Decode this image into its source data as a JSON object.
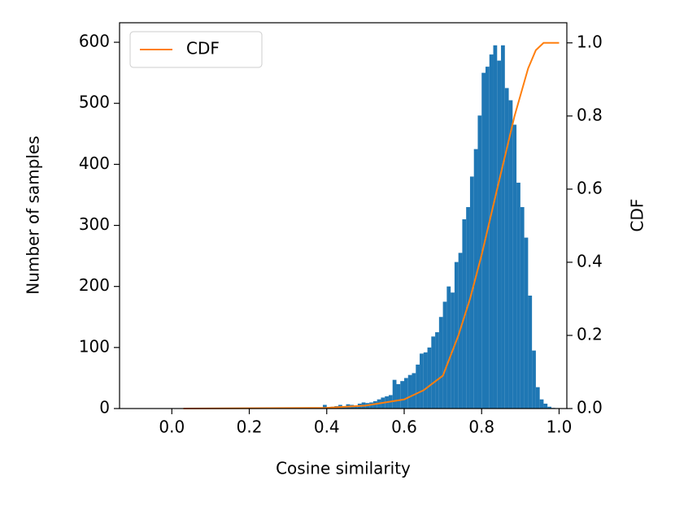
{
  "chart_data": {
    "type": "histogram",
    "x_label": "Cosine similarity",
    "y_label": "Number of samples",
    "y2_label": "CDF",
    "color": "#1f77b4",
    "bins": [
      0,
      0.01,
      0.02,
      0.03,
      0.04,
      0.05,
      0.06,
      0.07,
      0.08,
      0.09,
      0.1,
      0.11,
      0.12,
      0.13,
      0.14,
      0.15,
      0.16,
      0.17,
      0.18,
      0.19,
      0.2,
      0.21,
      0.22,
      0.23,
      0.24,
      0.25,
      0.26,
      0.27,
      0.28,
      0.29,
      0.3,
      0.31,
      0.32,
      0.33,
      0.34,
      0.35,
      0.36,
      0.37,
      0.38,
      0.39,
      0.4,
      0.41,
      0.42,
      0.43,
      0.44,
      0.45,
      0.46,
      0.47,
      0.48,
      0.49,
      0.5,
      0.51,
      0.52,
      0.53,
      0.54,
      0.55,
      0.56,
      0.57,
      0.58,
      0.59,
      0.6,
      0.61,
      0.62,
      0.63,
      0.64,
      0.65,
      0.66,
      0.67,
      0.68,
      0.69,
      0.7,
      0.71,
      0.72,
      0.73,
      0.74,
      0.75,
      0.76,
      0.77,
      0.78,
      0.79,
      0.8,
      0.81,
      0.82,
      0.83,
      0.84,
      0.85,
      0.86,
      0.87,
      0.88,
      0.89,
      0.9,
      0.91,
      0.92,
      0.93,
      0.94,
      0.95,
      0.96,
      0.97,
      0.98,
      0.99,
      1
    ],
    "values": [
      0,
      0,
      0,
      0,
      0,
      0,
      0,
      0,
      0,
      0,
      0,
      0,
      0,
      0,
      0,
      0,
      0,
      0,
      0,
      0,
      0,
      0,
      0,
      0,
      0,
      0,
      0,
      2,
      0,
      0,
      0,
      0,
      0,
      0,
      0,
      0,
      0,
      0,
      0,
      6,
      2,
      3,
      4,
      6,
      3,
      7,
      6,
      5,
      8,
      10,
      9,
      10,
      12,
      15,
      18,
      20,
      22,
      47,
      40,
      45,
      50,
      55,
      58,
      72,
      90,
      92,
      100,
      118,
      125,
      150,
      175,
      200,
      190,
      240,
      255,
      310,
      330,
      380,
      425,
      480,
      550,
      560,
      580,
      595,
      570,
      595,
      525,
      505,
      465,
      370,
      330,
      280,
      185,
      95,
      35,
      15,
      8,
      3,
      1,
      0
    ],
    "series": [
      {
        "name": "CDF",
        "color": "#ff7f0e",
        "axis": "y2",
        "x": [
          0.03,
          0.4,
          0.5,
          0.6,
          0.65,
          0.7,
          0.74,
          0.77,
          0.8,
          0.84,
          0.885,
          0.92,
          0.94,
          0.96,
          1.0
        ],
        "values": [
          0,
          0.002,
          0.008,
          0.025,
          0.05,
          0.09,
          0.2,
          0.3,
          0.42,
          0.6,
          0.8,
          0.93,
          0.98,
          1.0,
          1.0
        ]
      }
    ],
    "legend": "upper left",
    "xlim": [
      -0.135,
      1.02
    ],
    "ylim": [
      0,
      632
    ],
    "y2lim": [
      0,
      1.055
    ],
    "xticks": [
      {
        "value": 0,
        "label": "0.0"
      },
      0.2,
      0.4,
      0.6,
      0.8,
      {
        "value": 1,
        "label": "1.0"
      }
    ],
    "yticks": [
      0,
      100,
      200,
      300,
      400,
      500,
      600
    ],
    "y2ticks": [
      {
        "value": 0,
        "label": "0.0"
      },
      0.2,
      0.4,
      0.6,
      0.8,
      {
        "value": 1,
        "label": "1.0"
      }
    ]
  }
}
